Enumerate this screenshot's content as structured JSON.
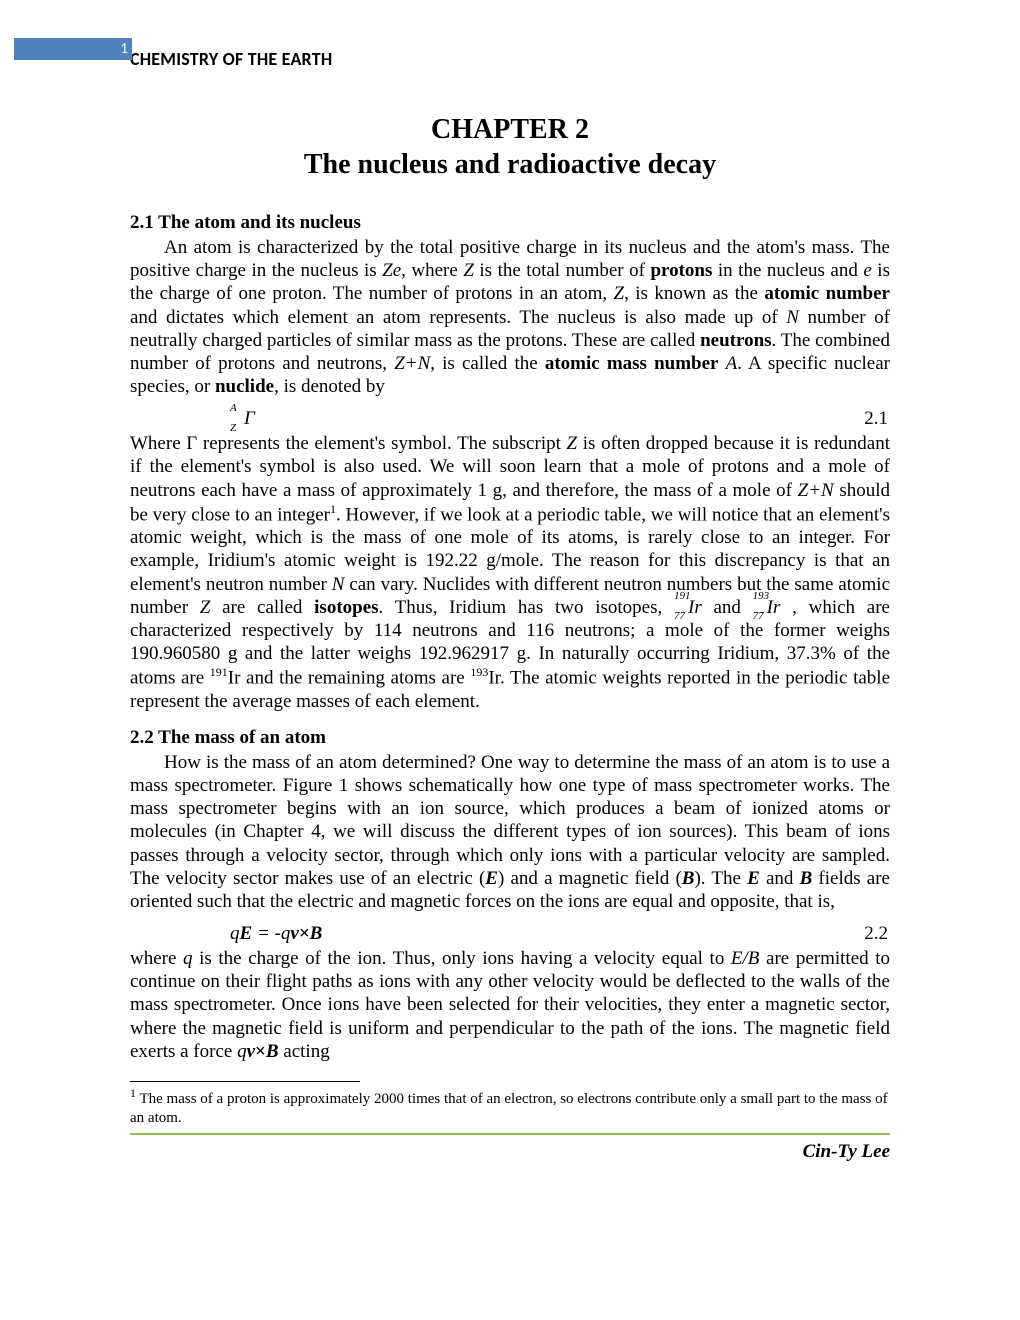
{
  "colors": {
    "header_bar_bg": "#4f81bd",
    "header_bar_text": "#ffffff",
    "footer_line": "#9bbb59",
    "page_bg": "#ffffff",
    "text": "#000000"
  },
  "typography": {
    "body_family": "Times New Roman",
    "header_family": "Calibri",
    "body_size_pt": 14,
    "heading_size_pt": 14,
    "chapter_size_pt": 21,
    "footnote_size_pt": 11
  },
  "header": {
    "page_number": "1",
    "doc_title": "CHEMISTRY OF THE EARTH"
  },
  "chapter": {
    "line1": "CHAPTER 2",
    "line2": "The nucleus and radioactive decay"
  },
  "sections": {
    "s21": {
      "heading": "2.1  The atom and its nucleus",
      "para1_a": "An atom is characterized by the total positive charge in its nucleus and the atom's mass.  The positive charge in the nucleus is ",
      "para1_b": ", where ",
      "para1_c": " is the total number of ",
      "para1_d": " in the nucleus and ",
      "para1_e": " is the charge of one proton.   The number of protons in an atom, ",
      "para1_f": ", is known as the ",
      "para1_g": " and dictates which element an atom represents.   The nucleus is also made up of ",
      "para1_h": " number of neutrally charged particles of similar mass as the protons.  These are called ",
      "para1_i": ".  The combined number of protons and neutrons, ",
      "para1_j": ", is called the ",
      "para1_k": ".   A specific nuclear species, or ",
      "para1_l": ", is denoted by",
      "Ze": "Ze",
      "Z": "Z",
      "e": "e",
      "N": "N",
      "ZN": "Z+N",
      "A": "A",
      "protons": "protons",
      "neutrons": "neutrons",
      "atomic_number": "atomic number",
      "atomic_mass_number": "atomic mass number",
      "nuclide": "nuclide",
      "eq1_num": "2.1",
      "eq1_sup": "A",
      "eq1_sub": "Z",
      "eq1_sym": "Γ",
      "para2_a": "Where Γ represents the element's symbol.  The subscript ",
      "para2_b": " is often dropped because it is redundant if the element's symbol is also used.  We will soon learn that a mole of protons and a mole of neutrons each have a mass of approximately 1 g, and therefore, the mass of a mole of ",
      "para2_c": " should be very close to an integer",
      "para2_d": ".  However, if we look at a periodic table, we will notice that an element's atomic weight, which is the mass of one mole of its atoms, is rarely close to an integer.  For example, Iridium's atomic weight is 192.22 g/mole.  The reason for this discrepancy is that an element's neutron number ",
      "para2_e": " can vary.  Nuclides with different neutron numbers but the same atomic number ",
      "para2_f": " are called ",
      "para2_g": ".   Thus, Iridium has two isotopes, ",
      "para2_h": " and ",
      "para2_i": " , which are characterized respectively by 114 neutrons and 116 neutrons; a mole of the former weighs 190.960580 g and the latter weighs 192.962917 g.  In naturally occurring Iridium, 37.3% of the atoms are ",
      "para2_j": "Ir and the remaining atoms are ",
      "para2_k": "Ir.  The atomic weights reported in the periodic table represent the average masses of each element.",
      "isotopes": "isotopes",
      "Ir": "Ir",
      "m191": "191",
      "m193": "193",
      "m77": "77",
      "fn1": "1"
    },
    "s22": {
      "heading": "2.2  The mass of an atom",
      "para1_a": "How is the mass of an atom determined?  One way to determine the mass of an atom is to use a mass spectrometer.  Figure 1 shows schematically how one type of mass spectrometer works.  The mass spectrometer begins with an ion source, which produces a beam of ionized atoms or molecules (in Chapter 4, we will discuss the different types of ion sources).   This beam of ions passes through a velocity sector, through which only ions with a particular velocity are sampled.   The velocity sector makes use of an electric (",
      "para1_b": ") and a magnetic field (",
      "para1_c": ").  The ",
      "para1_d": " and ",
      "para1_e": " fields are oriented such that the electric and magnetic forces on the ions are equal and opposite, that is,",
      "E": "E",
      "B": "B",
      "eq2_lhs_q": "q",
      "eq2_lhs_E": "E",
      "eq2_eq": " = -",
      "eq2_rhs_q": "q",
      "eq2_rhs_v": "v",
      "eq2_cross": "×",
      "eq2_rhs_B": "B",
      "eq2_num": "2.2",
      "para2_a": "where ",
      "para2_b": " is the charge of the ion. Thus, only ions having a velocity equal to ",
      "para2_c": " are permitted to continue on their flight paths as ions with any other velocity would be deflected to the walls of the mass spectrometer.    Once ions have been selected for their velocities, they enter a magnetic sector, where the magnetic field is uniform and perpendicular to the path of the ions.   The magnetic field exerts a force ",
      "para2_d": " acting",
      "q": "q",
      "EB": "E/B",
      "qvxB_q": "q",
      "qvxB_v": "v",
      "qvxB_x": "×",
      "qvxB_B": "B"
    }
  },
  "footnote": {
    "marker": "1",
    "text": " The mass of a proton is approximately 2000 times that of an electron, so electrons contribute only a small part to the mass of an atom."
  },
  "footer": {
    "author": "Cin-Ty Lee"
  }
}
